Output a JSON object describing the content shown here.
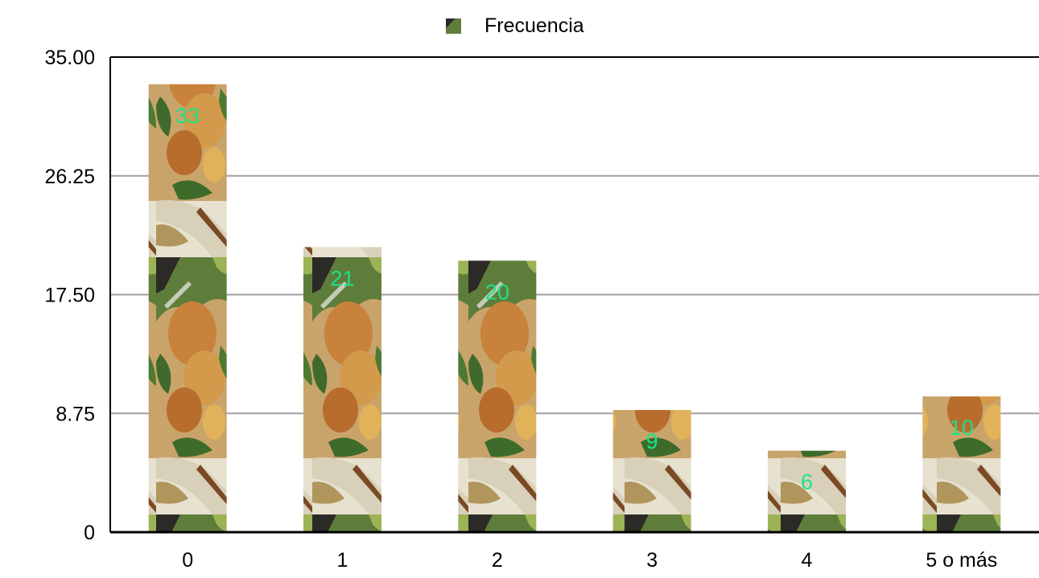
{
  "chart_data": {
    "type": "bar",
    "categories": [
      "0",
      "1",
      "2",
      "3",
      "4",
      "5 o más"
    ],
    "series": [
      {
        "name": "Frecuencia",
        "values": [
          33,
          21,
          20,
          9,
          6,
          10
        ]
      }
    ],
    "data_labels": [
      "33",
      "21",
      "20",
      "9",
      "6",
      "10"
    ],
    "ylim": [
      0,
      35
    ],
    "yticks": [
      "0",
      "8.75",
      "17.50",
      "26.25",
      "35.00"
    ],
    "ytick_values": [
      0,
      8.75,
      17.5,
      26.25,
      35
    ],
    "grid": true,
    "legend_position": "top-center",
    "title": "",
    "xlabel": "",
    "ylabel": "",
    "colors": {
      "data_label": "#19e38a",
      "grid": "#a0a0a0",
      "axis": "#000000"
    },
    "bar_fill": "photo texture of roasted chicken with greens"
  }
}
